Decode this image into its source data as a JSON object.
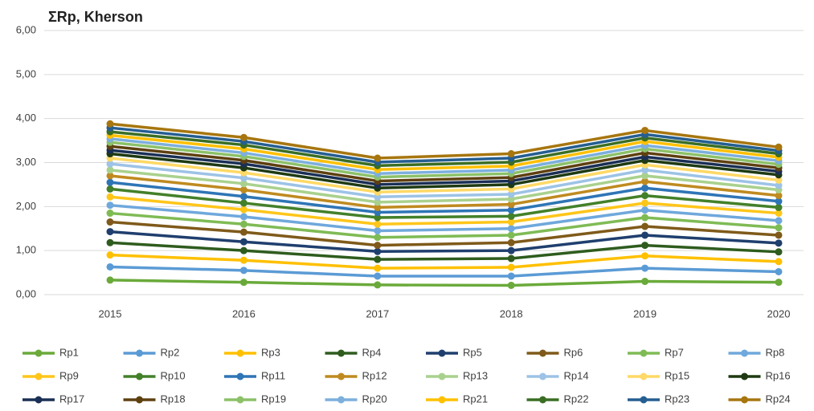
{
  "chart_data": {
    "type": "stacked_line",
    "title": "ΣRp, Kherson",
    "categories": [
      "2015",
      "2016",
      "2017",
      "2018",
      "2019",
      "2020"
    ],
    "ylim": [
      0,
      6
    ],
    "yticks": [
      {
        "value": 0,
        "label": "0,00"
      },
      {
        "value": 1,
        "label": "1,00"
      },
      {
        "value": 2,
        "label": "2,00"
      },
      {
        "value": 3,
        "label": "3,00"
      },
      {
        "value": 4,
        "label": "4,00"
      },
      {
        "value": 5,
        "label": "5,00"
      },
      {
        "value": 6,
        "label": "6,00"
      }
    ],
    "grid": true,
    "legend": "bottom",
    "series": [
      {
        "name": "Rp1",
        "color": "#6aaa3a",
        "values": [
          0.33,
          0.28,
          0.22,
          0.21,
          0.3,
          0.28
        ]
      },
      {
        "name": "Rp2",
        "color": "#5b9bd5",
        "values": [
          0.3,
          0.27,
          0.2,
          0.21,
          0.3,
          0.24
        ]
      },
      {
        "name": "Rp3",
        "color": "#ffc000",
        "values": [
          0.27,
          0.23,
          0.18,
          0.2,
          0.28,
          0.23
        ]
      },
      {
        "name": "Rp4",
        "color": "#2e5c1e",
        "values": [
          0.28,
          0.22,
          0.2,
          0.2,
          0.24,
          0.22
        ]
      },
      {
        "name": "Rp5",
        "color": "#1f3f6e",
        "values": [
          0.25,
          0.2,
          0.18,
          0.18,
          0.23,
          0.2
        ]
      },
      {
        "name": "Rp6",
        "color": "#7f5a1a",
        "values": [
          0.22,
          0.22,
          0.14,
          0.18,
          0.2,
          0.18
        ]
      },
      {
        "name": "Rp7",
        "color": "#7fbb55",
        "values": [
          0.2,
          0.18,
          0.18,
          0.17,
          0.2,
          0.17
        ]
      },
      {
        "name": "Rp8",
        "color": "#6fa8dc",
        "values": [
          0.18,
          0.17,
          0.15,
          0.15,
          0.17,
          0.16
        ]
      },
      {
        "name": "Rp9",
        "color": "#ffc61a",
        "values": [
          0.19,
          0.16,
          0.15,
          0.15,
          0.16,
          0.17
        ]
      },
      {
        "name": "Rp10",
        "color": "#43802a",
        "values": [
          0.18,
          0.15,
          0.15,
          0.13,
          0.17,
          0.13
        ]
      },
      {
        "name": "Rp11",
        "color": "#2e75b6",
        "values": [
          0.15,
          0.15,
          0.12,
          0.14,
          0.17,
          0.14
        ]
      },
      {
        "name": "Rp12",
        "color": "#bf8a1f",
        "values": [
          0.15,
          0.15,
          0.11,
          0.13,
          0.15,
          0.13
        ]
      },
      {
        "name": "Rp13",
        "color": "#a9d18e",
        "values": [
          0.13,
          0.14,
          0.12,
          0.12,
          0.13,
          0.13
        ]
      },
      {
        "name": "Rp14",
        "color": "#9dc3e6",
        "values": [
          0.14,
          0.13,
          0.12,
          0.11,
          0.13,
          0.1
        ]
      },
      {
        "name": "Rp15",
        "color": "#ffd966",
        "values": [
          0.13,
          0.12,
          0.11,
          0.12,
          0.12,
          0.12
        ]
      },
      {
        "name": "Rp16",
        "color": "#1e3a12",
        "values": [
          0.1,
          0.11,
          0.09,
          0.1,
          0.1,
          0.12
        ]
      },
      {
        "name": "Rp17",
        "color": "#1a2f55",
        "values": [
          0.08,
          0.09,
          0.08,
          0.08,
          0.08,
          0.08
        ]
      },
      {
        "name": "Rp18",
        "color": "#5e4010",
        "values": [
          0.09,
          0.08,
          0.08,
          0.08,
          0.09,
          0.08
        ]
      },
      {
        "name": "Rp19",
        "color": "#8cc168",
        "values": [
          0.09,
          0.09,
          0.09,
          0.09,
          0.09,
          0.08
        ]
      },
      {
        "name": "Rp20",
        "color": "#7cafdd",
        "values": [
          0.08,
          0.08,
          0.08,
          0.08,
          0.08,
          0.08
        ]
      },
      {
        "name": "Rp21",
        "color": "#ffc000",
        "values": [
          0.08,
          0.09,
          0.09,
          0.09,
          0.09,
          0.08
        ]
      },
      {
        "name": "Rp22",
        "color": "#3a6e24",
        "values": [
          0.08,
          0.09,
          0.09,
          0.09,
          0.08,
          0.08
        ]
      },
      {
        "name": "Rp23",
        "color": "#255e91",
        "values": [
          0.09,
          0.08,
          0.08,
          0.09,
          0.08,
          0.07
        ]
      },
      {
        "name": "Rp24",
        "color": "#a7760f",
        "values": [
          0.09,
          0.09,
          0.09,
          0.1,
          0.09,
          0.08
        ]
      }
    ]
  }
}
